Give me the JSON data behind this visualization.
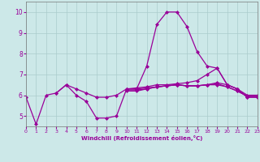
{
  "bg_color": "#cce8e8",
  "grid_color": "#aacccc",
  "line_color": "#990099",
  "markersize": 2.0,
  "linewidth": 0.9,
  "xlabel": "Windchill (Refroidissement éolien,°C)",
  "xlim": [
    0,
    23
  ],
  "ylim": [
    4.5,
    10.5
  ],
  "yticks": [
    5,
    6,
    7,
    8,
    9,
    10
  ],
  "xticks": [
    0,
    1,
    2,
    3,
    4,
    5,
    6,
    7,
    8,
    9,
    10,
    11,
    12,
    13,
    14,
    15,
    16,
    17,
    18,
    19,
    20,
    21,
    22,
    23
  ],
  "series": [
    [
      5.9,
      4.6,
      6.0,
      6.1,
      6.5,
      6.0,
      5.7,
      4.9,
      4.9,
      5.0,
      6.3,
      6.3,
      7.4,
      9.4,
      10.0,
      10.0,
      9.3,
      8.1,
      7.4,
      7.3,
      6.5,
      6.3,
      5.9,
      5.9
    ],
    [
      null,
      null,
      null,
      6.1,
      6.5,
      6.3,
      6.1,
      5.9,
      5.9,
      6.0,
      6.3,
      6.35,
      6.4,
      6.5,
      6.5,
      6.55,
      6.6,
      6.7,
      7.0,
      7.3,
      6.5,
      6.3,
      5.9,
      5.9
    ],
    [
      null,
      null,
      null,
      null,
      null,
      null,
      null,
      null,
      null,
      null,
      6.2,
      6.2,
      6.3,
      6.4,
      6.45,
      6.5,
      6.45,
      6.45,
      6.5,
      6.6,
      6.5,
      6.3,
      6.0,
      6.0
    ],
    [
      null,
      null,
      null,
      null,
      null,
      null,
      null,
      null,
      null,
      null,
      6.25,
      6.25,
      6.3,
      6.4,
      6.45,
      6.5,
      6.45,
      6.45,
      6.5,
      6.55,
      6.4,
      6.2,
      5.95,
      5.95
    ],
    [
      null,
      null,
      null,
      null,
      null,
      null,
      null,
      null,
      null,
      null,
      6.3,
      6.3,
      6.35,
      6.4,
      6.45,
      6.5,
      6.45,
      6.45,
      6.5,
      6.5,
      6.4,
      6.2,
      5.95,
      5.95
    ]
  ]
}
